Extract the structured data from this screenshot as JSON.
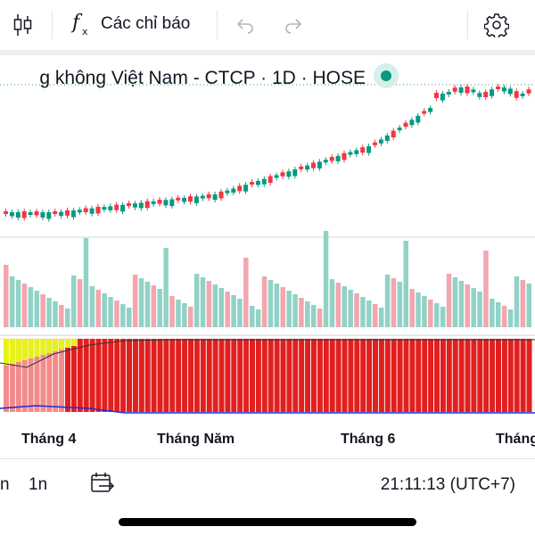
{
  "toolbar": {
    "indicators_label": "Các chỉ báo",
    "icons": [
      "candlestick-icon",
      "function-icon",
      "undo-icon",
      "redo-icon",
      "settings-icon"
    ]
  },
  "chart_title": "g không Việt Nam - CTCP · 1D · HOSE",
  "colors": {
    "up": "#089981",
    "down": "#f23645",
    "volume_up": "#92d2c6",
    "volume_down": "#f2a6ad",
    "indicator_fill": "#e21f1f",
    "indicator_yellow": "#e6f21a"
  },
  "time_axis": [
    "Tháng 4",
    "Tháng Năm",
    "Tháng 6",
    "Tháng"
  ],
  "bottom_bar": {
    "ranges": [
      "n",
      "1n"
    ],
    "clock": "21:11:13 (UTC+7)"
  }
}
